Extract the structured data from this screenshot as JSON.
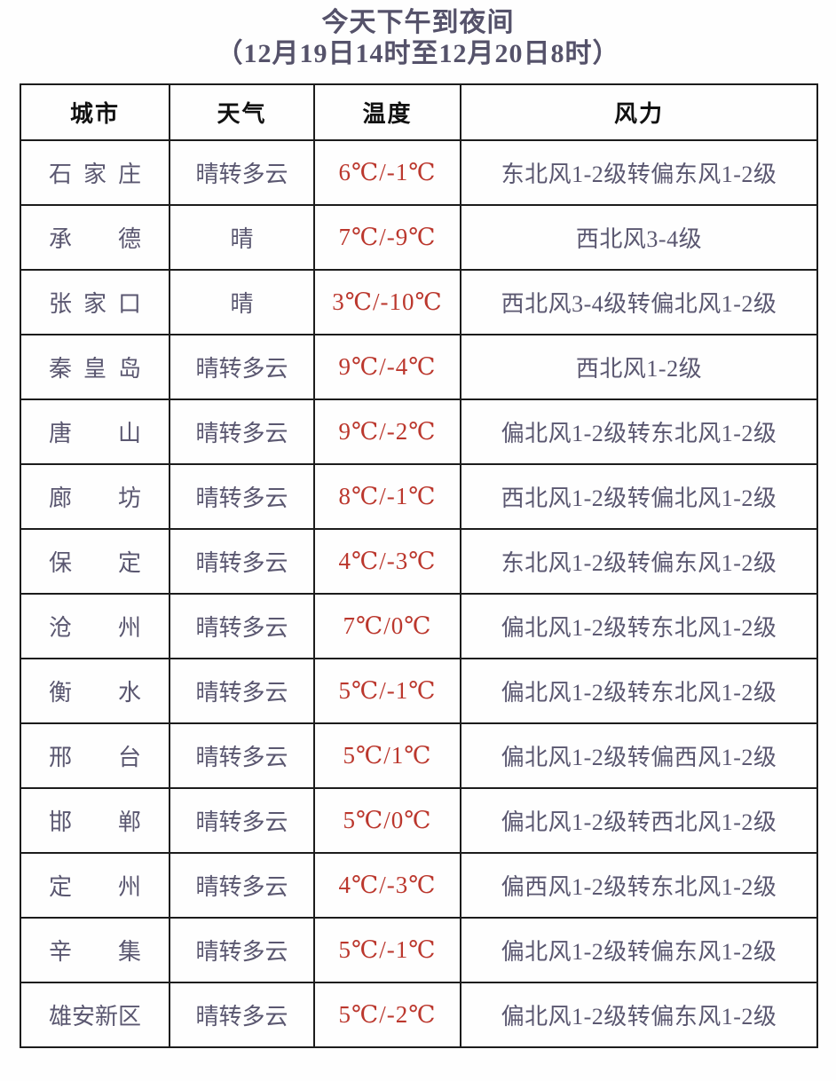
{
  "page": {
    "title_line1": "今天下午到夜间",
    "title_line2": "（12月19日14时至12月20日8时）"
  },
  "colors": {
    "title_text": "#55526a",
    "body_text": "#5a5770",
    "header_text": "#111111",
    "temperature_text": "#bb372d",
    "border": "#1c1c1c",
    "background": "#fefefe"
  },
  "table": {
    "headers": {
      "city": "城市",
      "weather": "天气",
      "temperature": "温度",
      "wind": "风力"
    },
    "rows": [
      {
        "city": "石家庄",
        "weather": "晴转多云",
        "temp": "6℃/-1℃",
        "wind": "东北风1-2级转偏东风1-2级"
      },
      {
        "city": "承德",
        "weather": "晴",
        "temp": "7℃/-9℃",
        "wind": "西北风3-4级"
      },
      {
        "city": "张家口",
        "weather": "晴",
        "temp": "3℃/-10℃",
        "wind": "西北风3-4级转偏北风1-2级"
      },
      {
        "city": "秦皇岛",
        "weather": "晴转多云",
        "temp": "9℃/-4℃",
        "wind": "西北风1-2级"
      },
      {
        "city": "唐山",
        "weather": "晴转多云",
        "temp": "9℃/-2℃",
        "wind": "偏北风1-2级转东北风1-2级"
      },
      {
        "city": "廊坊",
        "weather": "晴转多云",
        "temp": "8℃/-1℃",
        "wind": "西北风1-2级转偏北风1-2级"
      },
      {
        "city": "保定",
        "weather": "晴转多云",
        "temp": "4℃/-3℃",
        "wind": "东北风1-2级转偏东风1-2级"
      },
      {
        "city": "沧州",
        "weather": "晴转多云",
        "temp": "7℃/0℃",
        "wind": "偏北风1-2级转东北风1-2级"
      },
      {
        "city": "衡水",
        "weather": "晴转多云",
        "temp": "5℃/-1℃",
        "wind": "偏北风1-2级转东北风1-2级"
      },
      {
        "city": "邢台",
        "weather": "晴转多云",
        "temp": "5℃/1℃",
        "wind": "偏北风1-2级转偏西风1-2级"
      },
      {
        "city": "邯郸",
        "weather": "晴转多云",
        "temp": "5℃/0℃",
        "wind": "偏北风1-2级转西北风1-2级"
      },
      {
        "city": "定州",
        "weather": "晴转多云",
        "temp": "4℃/-3℃",
        "wind": "偏西风1-2级转东北风1-2级"
      },
      {
        "city": "辛集",
        "weather": "晴转多云",
        "temp": "5℃/-1℃",
        "wind": "偏北风1-2级转偏东风1-2级"
      },
      {
        "city": "雄安新区",
        "weather": "晴转多云",
        "temp": "5℃/-2℃",
        "wind": "偏北风1-2级转偏东风1-2级"
      }
    ]
  }
}
